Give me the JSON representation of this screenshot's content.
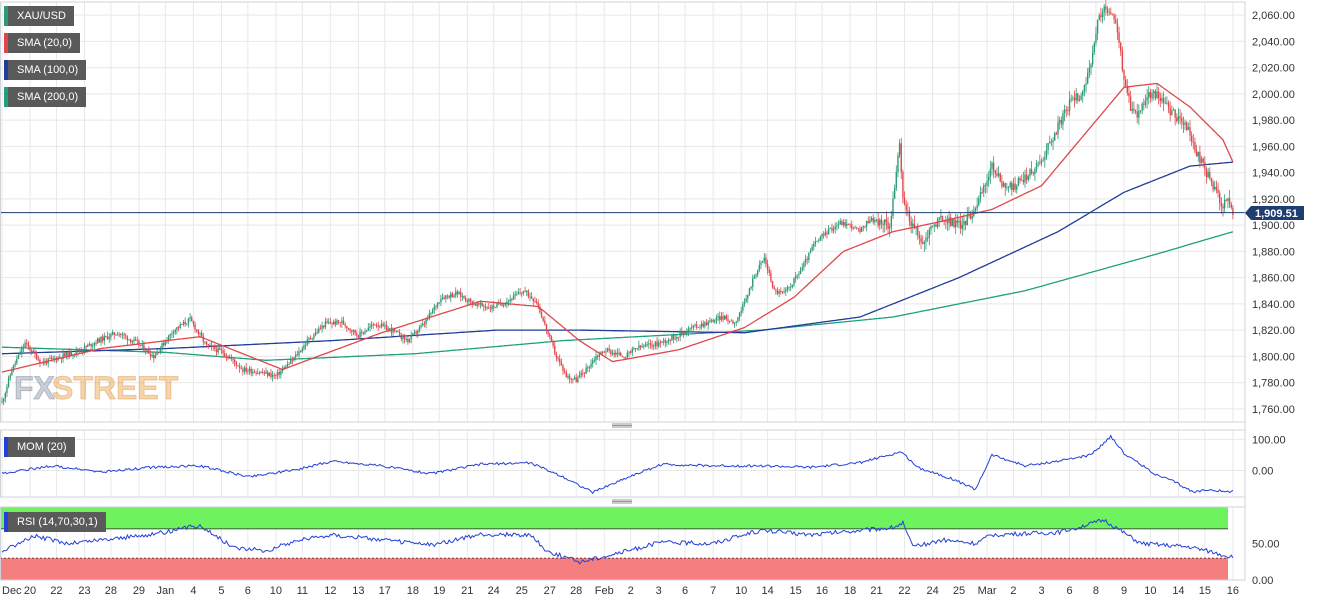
{
  "colors": {
    "price_up": "#2e9a75",
    "price_down": "#e0474c",
    "sma20": "#e0474c",
    "sma100": "#1f3d99",
    "sma200": "#20a07d",
    "mom": "#2340d8",
    "rsi": "#2340d8",
    "rsi_overbought": "#6ef25e",
    "rsi_oversold": "#f57f7f",
    "price_tag": "#1f3d70",
    "legend_bg": "#5a5a5a",
    "watermark": "#f0a040"
  },
  "watermark": {
    "fx": "FX",
    "street": "STREET"
  },
  "legend": {
    "main": [
      {
        "label": "XAU/USD",
        "color": "#2e9a75"
      },
      {
        "label": "SMA (20,0)",
        "color": "#e0474c"
      },
      {
        "label": "SMA (100,0)",
        "color": "#1f3d99"
      },
      {
        "label": "SMA (200,0)",
        "color": "#20a07d"
      }
    ],
    "mom": "MOM (20)",
    "rsi": "RSI (14,70,30,1)"
  },
  "chart_data": {
    "type": "candlestick",
    "symbol": "XAU/USD",
    "current_price": 1909.51,
    "current_price_label": "1,909.51",
    "x_tick_labels": [
      "Dec",
      "20",
      "22",
      "23",
      "28",
      "29",
      "Jan",
      "4",
      "5",
      "6",
      "10",
      "11",
      "12",
      "13",
      "17",
      "18",
      "19",
      "21",
      "24",
      "25",
      "27",
      "28",
      "Feb",
      "2",
      "3",
      "6",
      "7",
      "10",
      "14",
      "15",
      "16",
      "18",
      "21",
      "22",
      "24",
      "25",
      "Mar",
      "2",
      "3",
      "6",
      "8",
      "9",
      "10",
      "14",
      "15",
      "16"
    ],
    "price_axis": {
      "range": [
        1750,
        2070
      ],
      "ticks": [
        1760,
        1780,
        1800,
        1820,
        1840,
        1860,
        1880,
        1900,
        1920,
        1940,
        1960,
        1980,
        2000,
        2020,
        2040,
        2060
      ],
      "tick_labels": [
        "1,760.00",
        "1,780.00",
        "1,800.00",
        "1,820.00",
        "1,840.00",
        "1,860.00",
        "1,880.00",
        "1,900.00",
        "1,920.00",
        "1,940.00",
        "1,960.00",
        "1,980.00",
        "2,000.00",
        "2,020.00",
        "2,040.00",
        "2,060.00"
      ]
    },
    "close_keypoints": [
      [
        0,
        1765
      ],
      [
        6,
        1790
      ],
      [
        14,
        1810
      ],
      [
        24,
        1795
      ],
      [
        36,
        1800
      ],
      [
        48,
        1805
      ],
      [
        58,
        1812
      ],
      [
        70,
        1818
      ],
      [
        82,
        1810
      ],
      [
        92,
        1800
      ],
      [
        104,
        1820
      ],
      [
        114,
        1828
      ],
      [
        124,
        1808
      ],
      [
        134,
        1803
      ],
      [
        146,
        1790
      ],
      [
        156,
        1788
      ],
      [
        166,
        1785
      ],
      [
        176,
        1797
      ],
      [
        186,
        1813
      ],
      [
        196,
        1825
      ],
      [
        206,
        1826
      ],
      [
        216,
        1816
      ],
      [
        226,
        1825
      ],
      [
        236,
        1820
      ],
      [
        246,
        1812
      ],
      [
        256,
        1825
      ],
      [
        266,
        1845
      ],
      [
        276,
        1848
      ],
      [
        286,
        1840
      ],
      [
        296,
        1837
      ],
      [
        306,
        1842
      ],
      [
        316,
        1850
      ],
      [
        324,
        1842
      ],
      [
        330,
        1820
      ],
      [
        336,
        1800
      ],
      [
        342,
        1785
      ],
      [
        348,
        1782
      ],
      [
        354,
        1790
      ],
      [
        360,
        1800
      ],
      [
        366,
        1805
      ],
      [
        372,
        1802
      ],
      [
        378,
        1800
      ],
      [
        384,
        1806
      ],
      [
        390,
        1808
      ],
      [
        398,
        1810
      ],
      [
        408,
        1815
      ],
      [
        418,
        1822
      ],
      [
        428,
        1826
      ],
      [
        436,
        1830
      ],
      [
        444,
        1826
      ],
      [
        450,
        1840
      ],
      [
        456,
        1862
      ],
      [
        462,
        1875
      ],
      [
        468,
        1850
      ],
      [
        474,
        1848
      ],
      [
        480,
        1858
      ],
      [
        486,
        1870
      ],
      [
        492,
        1885
      ],
      [
        500,
        1895
      ],
      [
        508,
        1902
      ],
      [
        514,
        1900
      ],
      [
        520,
        1895
      ],
      [
        526,
        1905
      ],
      [
        532,
        1902
      ],
      [
        538,
        1900
      ],
      [
        542,
        1940
      ],
      [
        544,
        1960
      ],
      [
        546,
        1920
      ],
      [
        550,
        1905
      ],
      [
        554,
        1895
      ],
      [
        558,
        1885
      ],
      [
        564,
        1900
      ],
      [
        570,
        1905
      ],
      [
        576,
        1902
      ],
      [
        582,
        1900
      ],
      [
        588,
        1910
      ],
      [
        594,
        1925
      ],
      [
        600,
        1945
      ],
      [
        606,
        1932
      ],
      [
        612,
        1928
      ],
      [
        618,
        1935
      ],
      [
        624,
        1940
      ],
      [
        630,
        1950
      ],
      [
        636,
        1965
      ],
      [
        642,
        1980
      ],
      [
        648,
        1995
      ],
      [
        654,
        2000
      ],
      [
        660,
        2020
      ],
      [
        664,
        2055
      ],
      [
        668,
        2065
      ],
      [
        672,
        2060
      ],
      [
        676,
        2050
      ],
      [
        680,
        2010
      ],
      [
        684,
        1990
      ],
      [
        688,
        1985
      ],
      [
        694,
        1998
      ],
      [
        700,
        2000
      ],
      [
        706,
        1990
      ],
      [
        712,
        1982
      ],
      [
        718,
        1975
      ],
      [
        724,
        1955
      ],
      [
        730,
        1940
      ],
      [
        736,
        1925
      ],
      [
        740,
        1915
      ],
      [
        743,
        1920
      ],
      [
        746,
        1910
      ]
    ],
    "sma20_keypoints": [
      [
        0,
        1788
      ],
      [
        60,
        1806
      ],
      [
        120,
        1815
      ],
      [
        170,
        1790
      ],
      [
        230,
        1818
      ],
      [
        290,
        1842
      ],
      [
        325,
        1838
      ],
      [
        350,
        1812
      ],
      [
        370,
        1796
      ],
      [
        410,
        1805
      ],
      [
        450,
        1822
      ],
      [
        480,
        1845
      ],
      [
        510,
        1880
      ],
      [
        540,
        1895
      ],
      [
        570,
        1903
      ],
      [
        600,
        1912
      ],
      [
        630,
        1930
      ],
      [
        660,
        1975
      ],
      [
        680,
        2005
      ],
      [
        700,
        2008
      ],
      [
        720,
        1990
      ],
      [
        740,
        1965
      ],
      [
        746,
        1948
      ]
    ],
    "sma100_keypoints": [
      [
        0,
        1802
      ],
      [
        100,
        1806
      ],
      [
        200,
        1812
      ],
      [
        300,
        1820
      ],
      [
        350,
        1820
      ],
      [
        450,
        1818
      ],
      [
        520,
        1830
      ],
      [
        580,
        1860
      ],
      [
        640,
        1895
      ],
      [
        680,
        1925
      ],
      [
        720,
        1945
      ],
      [
        746,
        1948
      ]
    ],
    "sma200_keypoints": [
      [
        0,
        1807
      ],
      [
        100,
        1803
      ],
      [
        160,
        1797
      ],
      [
        250,
        1802
      ],
      [
        340,
        1812
      ],
      [
        460,
        1820
      ],
      [
        540,
        1830
      ],
      [
        620,
        1850
      ],
      [
        700,
        1878
      ],
      [
        746,
        1895
      ]
    ],
    "momentum": {
      "range": [
        -85,
        130
      ],
      "ticks": [
        0,
        100
      ],
      "tick_labels": [
        "0.00",
        "100.00"
      ],
      "keypoints": [
        [
          0,
          -10
        ],
        [
          30,
          15
        ],
        [
          60,
          -5
        ],
        [
          90,
          10
        ],
        [
          120,
          15
        ],
        [
          150,
          -20
        ],
        [
          180,
          5
        ],
        [
          200,
          30
        ],
        [
          230,
          15
        ],
        [
          260,
          -10
        ],
        [
          290,
          20
        ],
        [
          320,
          25
        ],
        [
          340,
          -20
        ],
        [
          358,
          -70
        ],
        [
          380,
          -20
        ],
        [
          400,
          20
        ],
        [
          430,
          15
        ],
        [
          460,
          15
        ],
        [
          490,
          10
        ],
        [
          520,
          25
        ],
        [
          545,
          60
        ],
        [
          555,
          10
        ],
        [
          575,
          -25
        ],
        [
          590,
          -60
        ],
        [
          600,
          50
        ],
        [
          620,
          15
        ],
        [
          640,
          30
        ],
        [
          660,
          50
        ],
        [
          672,
          110
        ],
        [
          680,
          55
        ],
        [
          700,
          -15
        ],
        [
          710,
          -35
        ],
        [
          722,
          -70
        ],
        [
          732,
          -60
        ],
        [
          744,
          -70
        ],
        [
          746,
          -65
        ]
      ]
    },
    "rsi": {
      "range": [
        0,
        100
      ],
      "ticks": [
        0,
        50
      ],
      "tick_labels": [
        "0.00",
        "50.00"
      ],
      "overbought": 70,
      "oversold": 30,
      "keypoints": [
        [
          0,
          40
        ],
        [
          20,
          60
        ],
        [
          40,
          50
        ],
        [
          60,
          55
        ],
        [
          90,
          62
        ],
        [
          120,
          75
        ],
        [
          140,
          45
        ],
        [
          160,
          40
        ],
        [
          180,
          55
        ],
        [
          200,
          62
        ],
        [
          230,
          55
        ],
        [
          260,
          48
        ],
        [
          290,
          62
        ],
        [
          320,
          62
        ],
        [
          330,
          40
        ],
        [
          350,
          25
        ],
        [
          370,
          35
        ],
        [
          400,
          52
        ],
        [
          430,
          50
        ],
        [
          460,
          68
        ],
        [
          490,
          62
        ],
        [
          520,
          68
        ],
        [
          540,
          72
        ],
        [
          546,
          78
        ],
        [
          552,
          45
        ],
        [
          570,
          55
        ],
        [
          590,
          50
        ],
        [
          600,
          62
        ],
        [
          640,
          65
        ],
        [
          668,
          82
        ],
        [
          690,
          50
        ],
        [
          720,
          45
        ],
        [
          730,
          40
        ],
        [
          744,
          32
        ],
        [
          746,
          33
        ]
      ]
    }
  }
}
